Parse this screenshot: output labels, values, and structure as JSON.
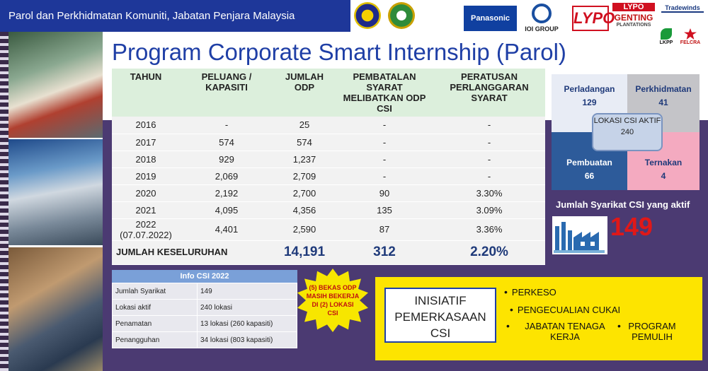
{
  "header": {
    "org": "Parol dan Perkhidmatan Komuniti, Jabatan Penjara Malaysia"
  },
  "logos": {
    "panasonic": "Panasonic",
    "ioi": "IOI GROUP",
    "lypo": "LYPO",
    "lypo_small": "LYPO",
    "genting": "GENTING",
    "genting_sub": "PLANTATIONS",
    "tradewinds": "Tradewinds",
    "lkpp": "LKPP",
    "felcra": "FELCRA"
  },
  "title": "Program Corporate Smart Internship (Parol)",
  "table": {
    "headers": [
      "TAHUN",
      "PELUANG / KAPASITI",
      "JUMLAH ODP",
      "PEMBATALAN SYARAT MELIBATKAN ODP CSI",
      "PERATUSAN PERLANGGARAN SYARAT"
    ],
    "rows": [
      [
        "2016",
        "-",
        "25",
        "-",
        "-"
      ],
      [
        "2017",
        "574",
        "574",
        "-",
        "-"
      ],
      [
        "2018",
        "929",
        "1,237",
        "-",
        "-"
      ],
      [
        "2019",
        "2,069",
        "2,709",
        "-",
        "-"
      ],
      [
        "2020",
        "2,192",
        "2,700",
        "90",
        "3.30%"
      ],
      [
        "2021",
        "4,095",
        "4,356",
        "135",
        "3.09%"
      ],
      [
        "2022 (07.07.2022)",
        "4,401",
        "2,590",
        "87",
        "3.36%"
      ]
    ],
    "total": {
      "label": "JUMLAH KESELURUHAN",
      "odp": "14,191",
      "pembatalan": "312",
      "peratusan": "2.20%"
    }
  },
  "info": {
    "title": "Info CSI 2022",
    "rows": [
      [
        "Jumlah Syarikat",
        "149"
      ],
      [
        "Lokasi aktif",
        "240 lokasi"
      ],
      [
        "Penamatan",
        "13 lokasi (260 kapasiti)"
      ],
      [
        "Penangguhan",
        "34 lokasi (803 kapasiti)"
      ]
    ]
  },
  "burst": "(5) BEKAS ODP MASIH BEKERJA DI (2) LOKASI CSI",
  "inisiatif": {
    "title": "INISIATIF PEMERKASAAN CSI",
    "items": [
      "PERKESO",
      "PENGECUALIAN CUKAI",
      "JABATAN TENAGA KERJA",
      "PROGRAM PEMULIH"
    ]
  },
  "sectors": {
    "perladangan": {
      "label": "Perladangan",
      "value": "129"
    },
    "perkhidmatan": {
      "label": "Perkhidmatan",
      "value": "41"
    },
    "pembuatan": {
      "label": "Pembuatan",
      "value": "66"
    },
    "ternakan": {
      "label": "Ternakan",
      "value": "4"
    },
    "center": {
      "label": "LOKASI CSI AKTIF",
      "value": "240"
    }
  },
  "aktif": {
    "label": "Jumlah Syarikat CSI yang aktif",
    "value": "149"
  }
}
